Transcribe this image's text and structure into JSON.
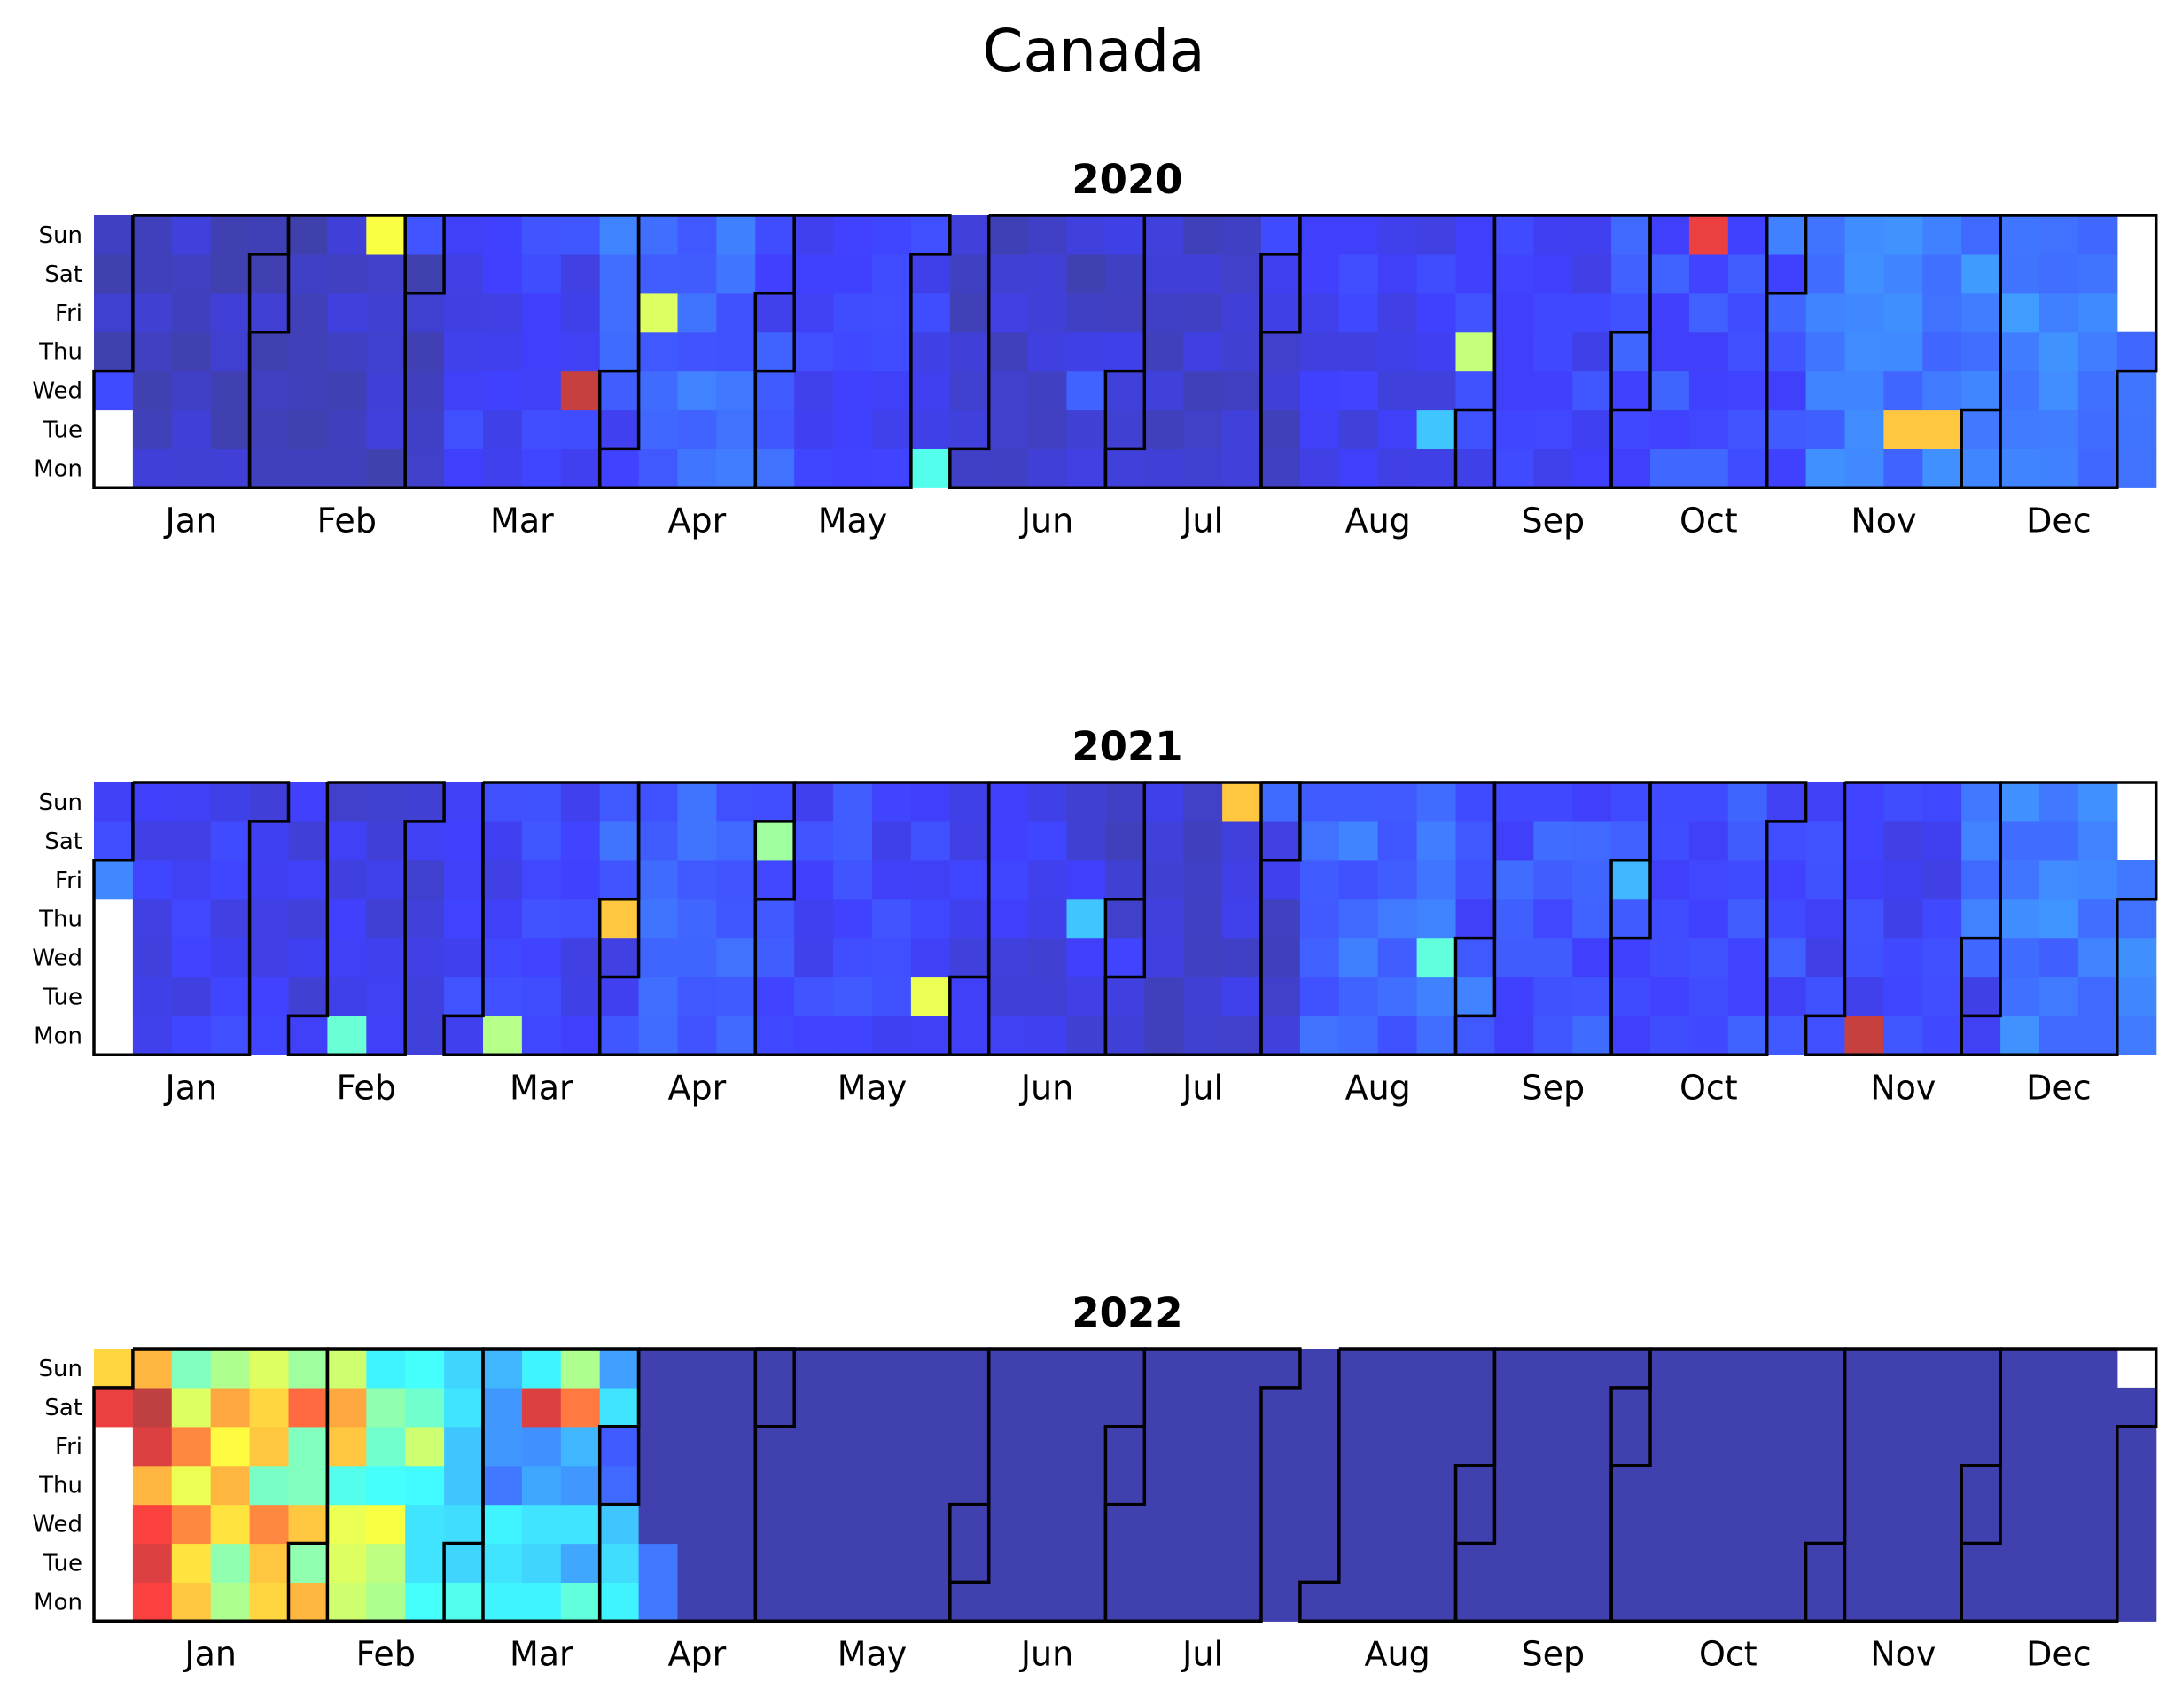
{
  "page": {
    "title": "Canada"
  },
  "chart_data": {
    "type": "heatmap",
    "title": "Canada",
    "colormap": "jet",
    "weekday_labels": [
      "Sun",
      "Sat",
      "Fri",
      "Thu",
      "Wed",
      "Tue",
      "Mon"
    ],
    "month_labels": [
      "Jan",
      "Feb",
      "Mar",
      "Apr",
      "May",
      "Jun",
      "Jul",
      "Aug",
      "Sep",
      "Oct",
      "Nov",
      "Dec"
    ],
    "value_scale": "relative intensity 0 to 1 (jet colormap; dark blue = low, dark red = high)",
    "years": [
      {
        "year": "2020",
        "highlights": [
          {
            "date": "2020-01-01",
            "value": 0.14
          },
          {
            "date": "2020-02-23",
            "value": 0.62
          },
          {
            "date": "2020-03-25",
            "value": 0.95
          },
          {
            "date": "2020-04-10",
            "value": 0.58
          },
          {
            "date": "2020-05-25",
            "value": 0.4
          },
          {
            "date": "2020-06-24",
            "value": 0.17
          },
          {
            "date": "2020-08-25",
            "value": 0.3
          },
          {
            "date": "2020-09-03",
            "value": 0.55
          },
          {
            "date": "2020-10-18",
            "value": 0.9
          },
          {
            "date": "2020-11-17",
            "value": 0.7
          },
          {
            "date": "2020-11-24",
            "value": 0.7
          }
        ]
      },
      {
        "year": "2021",
        "highlights": [
          {
            "date": "2021-01-01",
            "value": 0.22
          },
          {
            "date": "2021-02-08",
            "value": 0.43
          },
          {
            "date": "2021-03-08",
            "value": 0.53
          },
          {
            "date": "2021-04-01",
            "value": 0.7
          },
          {
            "date": "2021-05-01",
            "value": 0.5
          },
          {
            "date": "2021-05-25",
            "value": 0.6
          },
          {
            "date": "2021-06-24",
            "value": 0.3
          },
          {
            "date": "2021-07-25",
            "value": 0.7
          },
          {
            "date": "2021-08-25",
            "value": 0.42
          },
          {
            "date": "2021-10-01",
            "value": 0.28
          },
          {
            "date": "2021-11-08",
            "value": 0.95
          }
        ]
      },
      {
        "year": "2022",
        "data_through": "2022-04-05"
      }
    ]
  }
}
